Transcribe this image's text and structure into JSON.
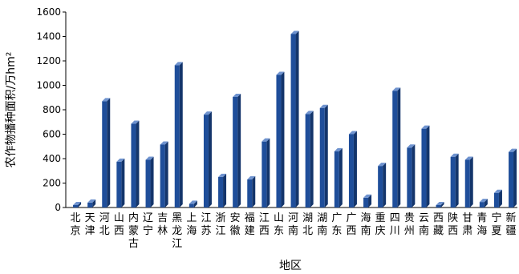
{
  "chart_data": {
    "type": "bar",
    "xlabel": "地区",
    "ylabel": "农作物播种面积/万hm²",
    "ylim": [
      0,
      1600
    ],
    "yticks": [
      0,
      200,
      400,
      600,
      800,
      1000,
      1200,
      1400,
      1600
    ],
    "grid": false,
    "legend": "none",
    "bar_color": "#1f4e9a",
    "categories": [
      "北京",
      "天津",
      "河北",
      "山西",
      "内蒙古",
      "辽宁",
      "吉林",
      "黑龙江",
      "上海",
      "江苏",
      "浙江",
      "安徽",
      "福建",
      "江西",
      "山东",
      "河南",
      "湖北",
      "湖南",
      "广东",
      "广西",
      "海南",
      "重庆",
      "四川",
      "贵州",
      "云南",
      "西藏",
      "陕西",
      "甘肃",
      "青海",
      "宁夏",
      "新疆"
    ],
    "values": [
      20,
      40,
      870,
      375,
      685,
      390,
      515,
      1165,
      30,
      760,
      250,
      905,
      230,
      540,
      1085,
      1420,
      765,
      815,
      460,
      600,
      80,
      340,
      955,
      490,
      645,
      20,
      415,
      390,
      45,
      120,
      455
    ]
  }
}
